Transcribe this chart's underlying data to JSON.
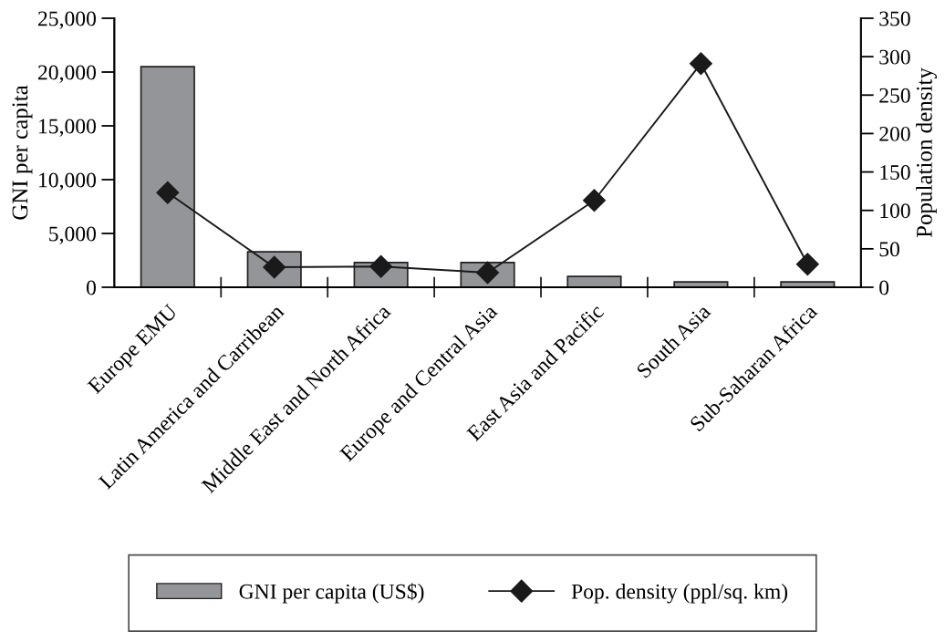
{
  "chart_data": {
    "type": "bar",
    "categories": [
      "Europe EMU",
      "Latin America and Carribean",
      "Middle East and North Africa",
      "Europe and Central Asia",
      "East Asia and Pacific",
      "South Asia",
      "Sub-Saharan Africa"
    ],
    "series": [
      {
        "name": "GNI per capita (US$)",
        "color": "#939598",
        "values": [
          20500,
          3300,
          2300,
          2300,
          1000,
          500,
          500
        ]
      },
      {
        "name": "Pop. density (ppl/sq. km)",
        "type": "line",
        "axis": "y2",
        "color": "#1a1a1a",
        "marker": "diamond",
        "values": [
          123,
          26,
          27,
          19,
          113,
          291,
          30
        ]
      }
    ],
    "ylabel": "GNI per capita",
    "y2label": "Population density",
    "ylim": [
      0,
      25000
    ],
    "yticks": [
      {
        "value": 0,
        "label": "0"
      },
      {
        "value": 5000,
        "label": "5,000"
      },
      {
        "value": 10000,
        "label": "10,000"
      },
      {
        "value": 15000,
        "label": "15,000"
      },
      {
        "value": 20000,
        "label": "20,000"
      },
      {
        "value": 25000,
        "label": "25,000"
      }
    ],
    "y2lim": [
      0,
      350
    ],
    "y2ticks": [
      0,
      50,
      100,
      150,
      200,
      250,
      300,
      350
    ],
    "grid": false,
    "legend": "bottom"
  }
}
